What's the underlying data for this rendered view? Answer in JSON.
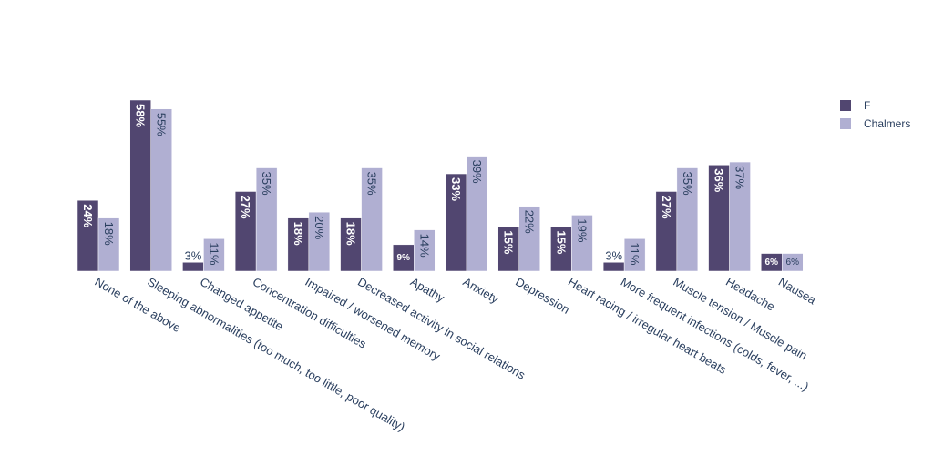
{
  "chart_data": {
    "type": "bar",
    "categories": [
      "None of the above",
      "Sleeping abnormalities (too much, too little, poor quality)",
      "Changed appetite",
      "Concentration difficulties",
      "Impaired / worsened memory",
      "Decreased  activity in social relations",
      "Apathy",
      "Anxiety",
      "Depression",
      "Heart racing / irregular heart beats",
      "More frequent infections (colds, fever, ...)",
      "Muscle tension / Muscle pain",
      "Headache",
      "Nausea"
    ],
    "series": [
      {
        "name": "F",
        "color": "#514670",
        "values": [
          24,
          58,
          3,
          27,
          18,
          18,
          9,
          33,
          15,
          15,
          3,
          27,
          36,
          6
        ],
        "labels": [
          "24%",
          "58%",
          "3%",
          "27%",
          "18%",
          "18%",
          "9%",
          "33%",
          "15%",
          "15%",
          "3%",
          "27%",
          "36%",
          "6%"
        ]
      },
      {
        "name": "Chalmers",
        "color": "#b0afd2",
        "values": [
          18,
          55,
          11,
          35,
          20,
          35,
          14,
          39,
          22,
          19,
          11,
          35,
          37,
          6
        ],
        "labels": [
          "18%",
          "55%",
          "11%",
          "35%",
          "20%",
          "35%",
          "14%",
          "39%",
          "22%",
          "19%",
          "11%",
          "35%",
          "37%",
          "6%"
        ]
      }
    ],
    "ylim": [
      0,
      58
    ],
    "grid": false,
    "legend_position": "top-right"
  }
}
